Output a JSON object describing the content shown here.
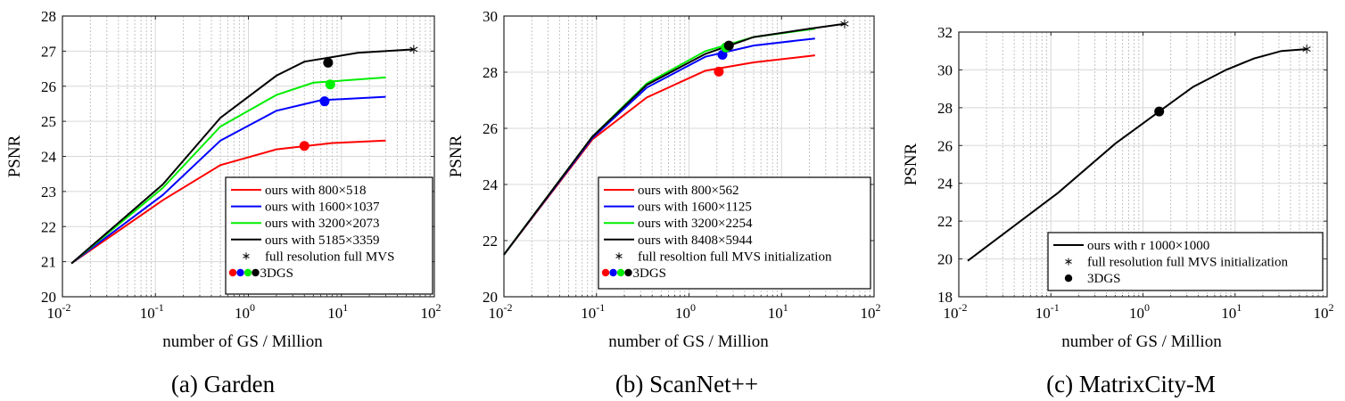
{
  "chart_data": [
    {
      "type": "line",
      "caption": "(a) Garden",
      "xlabel": "number of GS / Million",
      "ylabel": "PSNR",
      "xscale": "log",
      "xlim": [
        0.01,
        100
      ],
      "ylim": [
        20,
        28
      ],
      "x_ticks": [
        "10^-2",
        "10^-1",
        "10^0",
        "10^1",
        "10^2"
      ],
      "y_ticks": [
        20,
        21,
        22,
        23,
        24,
        25,
        26,
        27,
        28
      ],
      "grid": true,
      "legend_position": "bottom-right",
      "series": [
        {
          "name": "ours with 800×518",
          "color": "#ff0000",
          "x": [
            0.0125,
            0.12,
            0.5,
            2,
            8,
            30
          ],
          "y": [
            20.95,
            22.75,
            23.75,
            24.2,
            24.38,
            24.45
          ]
        },
        {
          "name": "ours with 1600×1037",
          "color": "#0000ff",
          "x": [
            0.0125,
            0.12,
            0.5,
            2,
            6,
            30
          ],
          "y": [
            20.95,
            22.9,
            24.45,
            25.3,
            25.6,
            25.7
          ]
        },
        {
          "name": "ours with 3200×2073",
          "color": "#00ee00",
          "x": [
            0.0125,
            0.12,
            0.5,
            2,
            5,
            30
          ],
          "y": [
            20.95,
            23.1,
            24.85,
            25.75,
            26.1,
            26.25
          ]
        },
        {
          "name": "ours with 5185×3359",
          "color": "#000000",
          "x": [
            0.0125,
            0.12,
            0.5,
            2,
            4,
            15,
            60
          ],
          "y": [
            20.95,
            23.2,
            25.1,
            26.3,
            26.7,
            26.95,
            27.05
          ]
        }
      ],
      "marker_star": {
        "name": "full resolution full MVS",
        "x": 60,
        "y": 27.05
      },
      "marker_dots_label": "3DGS",
      "marker_dots": [
        {
          "color": "#ff0000",
          "x": 4,
          "y": 24.3
        },
        {
          "color": "#0000ff",
          "x": 6.6,
          "y": 25.57
        },
        {
          "color": "#00ee00",
          "x": 7.6,
          "y": 26.05
        },
        {
          "color": "#000000",
          "x": 7.2,
          "y": 26.67
        }
      ]
    },
    {
      "type": "line",
      "caption": "(b) ScanNet++",
      "xlabel": "number of GS / Million",
      "ylabel": "PSNR",
      "xscale": "log",
      "xlim": [
        0.01,
        100
      ],
      "ylim": [
        20,
        30
      ],
      "x_ticks": [
        "10^-2",
        "10^-1",
        "10^0",
        "10^1",
        "10^2"
      ],
      "y_ticks": [
        20,
        22,
        24,
        26,
        28,
        30
      ],
      "grid": true,
      "legend_position": "bottom-right",
      "series": [
        {
          "name": "ours with 800×562",
          "color": "#ff0000",
          "x": [
            0.01,
            0.09,
            0.35,
            1.5,
            5,
            23
          ],
          "y": [
            21.5,
            25.6,
            27.1,
            28.05,
            28.35,
            28.6
          ]
        },
        {
          "name": "ours with 1600×1125",
          "color": "#0000ff",
          "x": [
            0.01,
            0.09,
            0.35,
            1.5,
            5,
            23
          ],
          "y": [
            21.5,
            25.65,
            27.45,
            28.55,
            28.95,
            29.2
          ]
        },
        {
          "name": "ours with 3200×2254",
          "color": "#00ee00",
          "x": [
            0.01,
            0.09,
            0.35,
            1.5,
            5,
            23
          ],
          "y": [
            21.5,
            25.7,
            27.6,
            28.75,
            29.25,
            29.55
          ]
        },
        {
          "name": "ours with 8408×5944",
          "color": "#000000",
          "x": [
            0.01,
            0.09,
            0.35,
            1.5,
            5,
            20,
            48
          ],
          "y": [
            21.5,
            25.7,
            27.55,
            28.65,
            29.25,
            29.55,
            29.72
          ]
        }
      ],
      "marker_star": {
        "name": "full resoltion full MVS initialization",
        "x": 48,
        "y": 29.72
      },
      "marker_dots_label": "3DGS",
      "marker_dots": [
        {
          "color": "#ff0000",
          "x": 2.1,
          "y": 28.02
        },
        {
          "color": "#0000ff",
          "x": 2.3,
          "y": 28.62
        },
        {
          "color": "#00ee00",
          "x": 2.5,
          "y": 28.88
        },
        {
          "color": "#000000",
          "x": 2.7,
          "y": 28.95
        }
      ]
    },
    {
      "type": "line",
      "caption": "(c) MatrixCity-M",
      "xlabel": "number of GS / Million",
      "ylabel": "PSNR",
      "xscale": "log",
      "xlim": [
        0.01,
        100
      ],
      "ylim": [
        18,
        32
      ],
      "x_ticks": [
        "10^-2",
        "10^-1",
        "10^0",
        "10^1",
        "10^2"
      ],
      "y_ticks": [
        18,
        20,
        22,
        24,
        26,
        28,
        30,
        32
      ],
      "grid": true,
      "legend_position": "bottom-right",
      "series": [
        {
          "name": "ours with r 1000×1000",
          "color": "#000000",
          "x": [
            0.0125,
            0.12,
            0.5,
            1.5,
            3.5,
            8,
            16,
            32,
            60
          ],
          "y": [
            19.9,
            23.5,
            26.1,
            27.8,
            29.1,
            30.0,
            30.6,
            31.0,
            31.1
          ]
        }
      ],
      "marker_star": {
        "name": "full resolution full MVS initialization",
        "x": 60,
        "y": 31.1
      },
      "marker_dots_label": "3DGS",
      "marker_dots": [
        {
          "color": "#000000",
          "x": 1.5,
          "y": 27.8
        }
      ]
    }
  ]
}
